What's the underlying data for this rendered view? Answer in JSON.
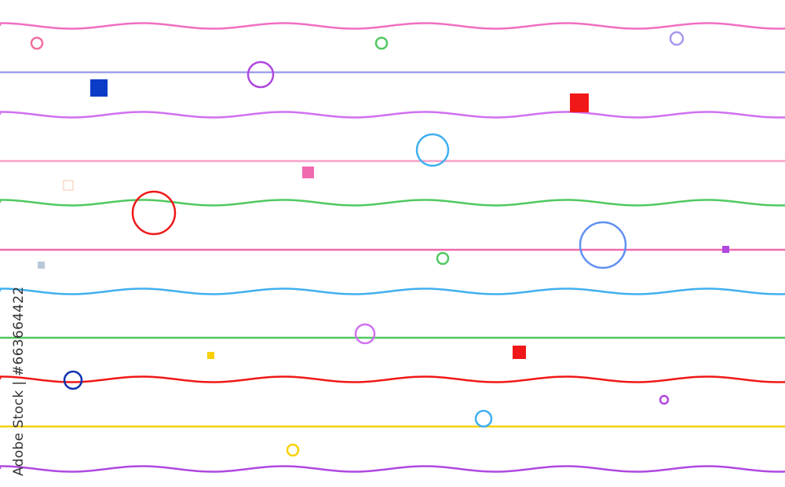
{
  "watermark": {
    "text": "Adobe Stock | #663664422"
  },
  "colors": {
    "pink": "#f06ec0",
    "lavender": "#a0a0f0",
    "violet": "#d070f0",
    "light_pink": "#f8a0c8",
    "green": "#50c860",
    "hot_pink": "#f06ab0",
    "blue": "#40b0f0",
    "red": "#f01818",
    "yellow": "#f8d000",
    "purple": "#b048e0",
    "navy": "#0a3cc8",
    "periwinkle": "#6090f0"
  }
}
